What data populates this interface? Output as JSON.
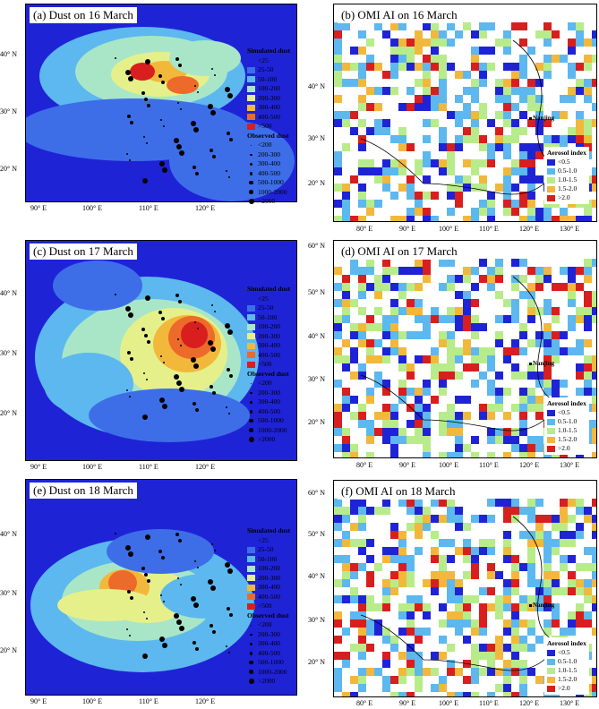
{
  "panels": [
    {
      "id": "a",
      "title": "(a) Dust on 16 March",
      "kind": "dust"
    },
    {
      "id": "b",
      "title": "(b) OMI AI on 16 March",
      "kind": "omi"
    },
    {
      "id": "c",
      "title": "(c) Dust on 17 March",
      "kind": "dust"
    },
    {
      "id": "d",
      "title": "(d) OMI AI on 17 March",
      "kind": "omi"
    },
    {
      "id": "e",
      "title": "(e) Dust on 18 March",
      "kind": "dust"
    },
    {
      "id": "f",
      "title": "(f) OMI AI on 18 March",
      "kind": "omi"
    }
  ],
  "dust_axes": {
    "lat_ticks": [
      "40° N",
      "30° N",
      "20° N"
    ],
    "lon_ticks": [
      "90° E",
      "100° E",
      "110° E",
      "120° E"
    ]
  },
  "omi_axes": {
    "lat_ticks_b": [
      "40° N",
      "30° N",
      "20° N"
    ],
    "lat_ticks_df": [
      "60° N",
      "50° N",
      "40° N",
      "30° N",
      "20° N"
    ],
    "lon_ticks": [
      "80° E",
      "90° E",
      "100° E",
      "110° E",
      "120° E",
      "130° E"
    ]
  },
  "sim_legend": {
    "title": "Simulated dust",
    "items": [
      {
        "label": "<25",
        "color": "#1f23d6"
      },
      {
        "label": "25-50",
        "color": "#3d6ee8"
      },
      {
        "label": "50-100",
        "color": "#5cb8ee"
      },
      {
        "label": "100-200",
        "color": "#a9e6c8"
      },
      {
        "label": "200-300",
        "color": "#e6f08a"
      },
      {
        "label": "300-400",
        "color": "#f2b83c"
      },
      {
        "label": "400-500",
        "color": "#ec6a2a"
      },
      {
        "label": ">500",
        "color": "#d81e1e"
      }
    ]
  },
  "obs_legend": {
    "title": "Observed dust",
    "items": [
      {
        "label": "<200",
        "size": 1
      },
      {
        "label": "200-300",
        "size": 2
      },
      {
        "label": "300-400",
        "size": 2.5
      },
      {
        "label": "400-500",
        "size": 3
      },
      {
        "label": "500-1000",
        "size": 3.5
      },
      {
        "label": "1000-2000",
        "size": 4
      },
      {
        "label": ">2000",
        "size": 5
      }
    ]
  },
  "ai_legend": {
    "title": "Aerosol index",
    "items": [
      {
        "label": "<0.5",
        "color": "#1f23d6"
      },
      {
        "label": "0.5-1.0",
        "color": "#5cb8ee"
      },
      {
        "label": "1.0-1.5",
        "color": "#b8ec8a"
      },
      {
        "label": "1.5-2.0",
        "color": "#f2b83c"
      },
      {
        "label": ">2.0",
        "color": "#d81e1e"
      }
    ]
  },
  "city_label": "Nanjing"
}
